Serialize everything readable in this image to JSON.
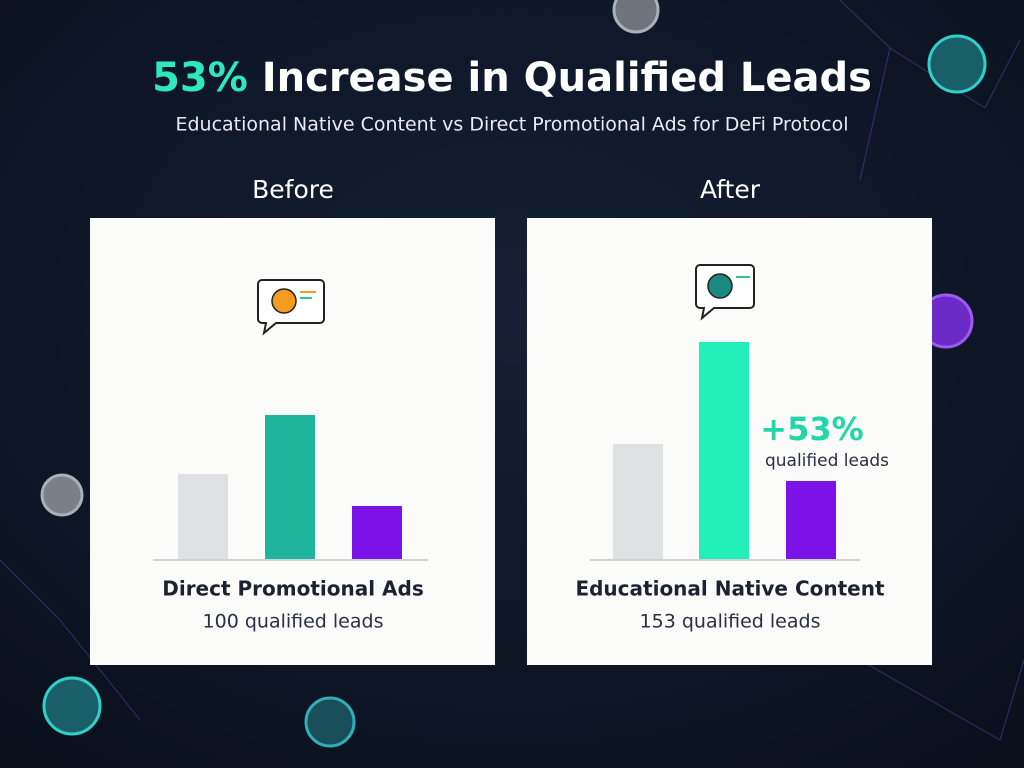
{
  "title_highlight": "53%",
  "title_rest": "Increase in Qualified Leads",
  "subtitle": "Educational Native Content vs Direct Promotional Ads for DeFi Protocol",
  "chart_data": [
    {
      "type": "bar",
      "heading": "Before",
      "label": "Direct Promotional Ads",
      "caption": "100 qualified leads",
      "categories": [
        null,
        null,
        null
      ],
      "values": [
        86,
        145,
        54
      ],
      "colors": [
        "#dfe2e3",
        "#1fb59c",
        "#7b12e8"
      ],
      "ylim": [
        0,
        240
      ]
    },
    {
      "type": "bar",
      "heading": "After",
      "label": "Educational Native Content",
      "caption": "153 qualified leads",
      "categories": [
        null,
        null,
        null
      ],
      "values": [
        116,
        218,
        79
      ],
      "colors": [
        "#dfe2e3",
        "#22f0b8",
        "#7b12e8"
      ],
      "ylim": [
        0,
        240
      ],
      "annotation": "+53%",
      "annotation_note": "qualified leads"
    }
  ]
}
